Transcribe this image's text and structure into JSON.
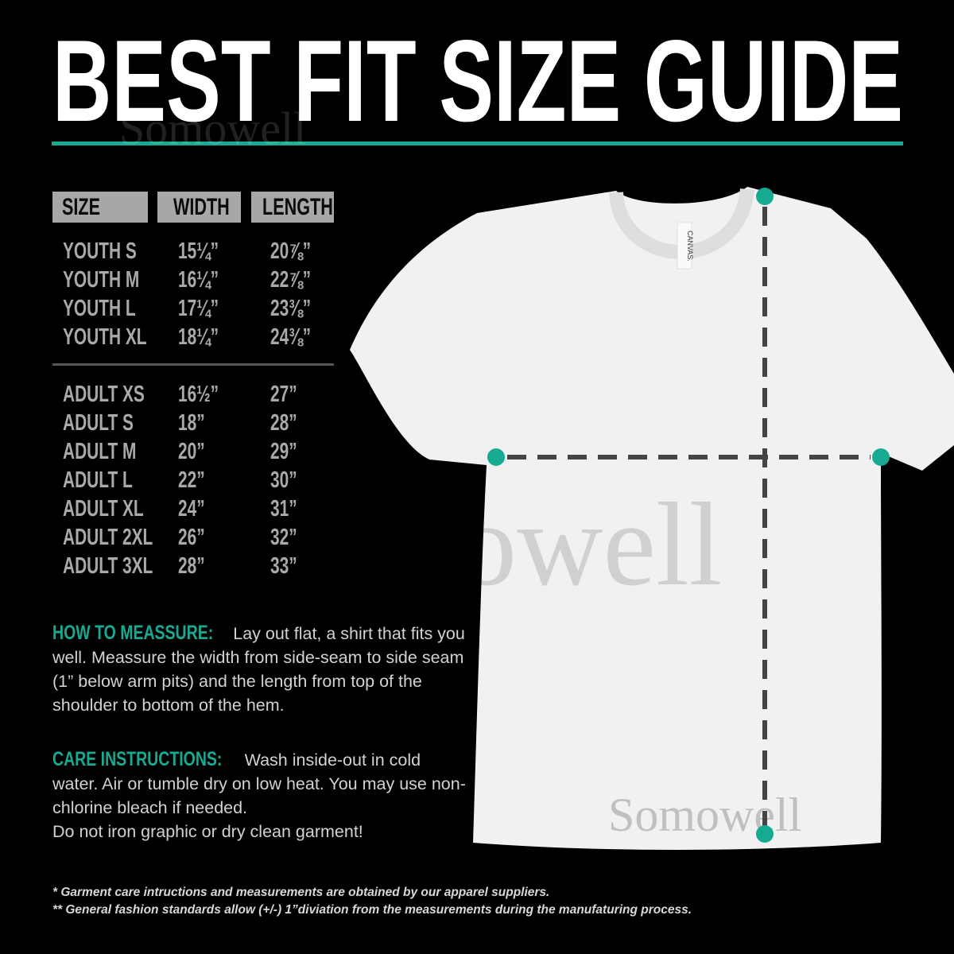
{
  "title": "BEST FIT SIZE GUIDE",
  "colors": {
    "accent": "#17a992",
    "background": "#000000",
    "header_bg": "#a7a7a7",
    "shirt": "#f1f1f1",
    "dash": "#444444"
  },
  "watermark": "Somowell",
  "shirt_tag": "CANVAS.",
  "table": {
    "headers": [
      "SIZE",
      "WIDTH",
      "LENGTH"
    ],
    "youth": [
      {
        "size": "YOUTH S",
        "width": "15¼”",
        "length": "20⅞”"
      },
      {
        "size": "YOUTH M",
        "width": "16¼”",
        "length": "22⅞”"
      },
      {
        "size": "YOUTH L",
        "width": "17¼”",
        "length": "23⅜”"
      },
      {
        "size": "YOUTH XL",
        "width": "18¼”",
        "length": "24⅜”"
      }
    ],
    "adult": [
      {
        "size": "ADULT XS",
        "width": "16½”",
        "length": "27”"
      },
      {
        "size": "ADULT S",
        "width": "18”",
        "length": "28”"
      },
      {
        "size": "ADULT M",
        "width": "20”",
        "length": "29”"
      },
      {
        "size": "ADULT L",
        "width": "22”",
        "length": "30”"
      },
      {
        "size": "ADULT XL",
        "width": "24”",
        "length": "31”"
      },
      {
        "size": "ADULT 2XL",
        "width": "26”",
        "length": "32”"
      },
      {
        "size": "ADULT 3XL",
        "width": "28”",
        "length": "33”"
      }
    ]
  },
  "how_to": {
    "label": "HOW TO MEASSURE:",
    "text": "Lay out flat, a shirt that fits you well. Meassure the width from side-seam to side seam (1” below arm pits) and the length from top of the shoulder to bottom of the hem."
  },
  "care": {
    "label": "CARE INSTRUCTIONS:",
    "text": "Wash inside-out in cold water. Air or tumble dry on low heat. You may use non-chlorine bleach if needed.",
    "text2": "Do not iron graphic or dry clean garment!"
  },
  "footnotes": [
    "* Garment care intructions and measurements are obtained by our apparel suppliers.",
    "** General fashion standards allow (+/-) 1”diviation from the measurements during the manufaturing process."
  ]
}
